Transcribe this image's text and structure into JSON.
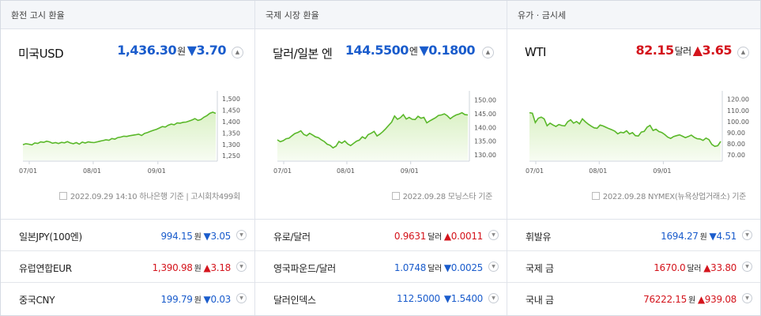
{
  "panels": [
    {
      "header": "환전 고시 환율",
      "title": "미국USD",
      "price": "1,436.30",
      "unit": "원",
      "change": "▼3.70",
      "direction": "down",
      "toggle_icon": "▲",
      "source": "2022.09.29 14:10 하나은행  기준  |  고시회차499회",
      "chart_data": {
        "type": "area",
        "x_ticks": [
          "07/01",
          "08/01",
          "09/01"
        ],
        "y_ticks": [
          "1,500",
          "1,450",
          "1,400",
          "1,350",
          "1,300",
          "1,250"
        ],
        "ylim": [
          1230,
          1500
        ],
        "values": [
          1299,
          1303,
          1301,
          1298,
          1306,
          1304,
          1311,
          1309,
          1314,
          1311,
          1305,
          1308,
          1304,
          1309,
          1307,
          1312,
          1306,
          1303,
          1308,
          1301,
          1310,
          1306,
          1311,
          1309,
          1308,
          1311,
          1314,
          1317,
          1320,
          1318,
          1326,
          1323,
          1330,
          1332,
          1336,
          1335,
          1338,
          1340,
          1342,
          1345,
          1339,
          1348,
          1352,
          1357,
          1362,
          1366,
          1372,
          1378,
          1376,
          1384,
          1389,
          1386,
          1394,
          1393,
          1397,
          1398,
          1402,
          1407,
          1413,
          1405,
          1409,
          1419,
          1426,
          1436,
          1441,
          1436
        ]
      },
      "rows": [
        {
          "name": "일본JPY(100엔)",
          "value": "994.15",
          "unit": "원",
          "change": "▼3.05",
          "direction": "down"
        },
        {
          "name": "유럽연합EUR",
          "value": "1,390.98",
          "unit": "원",
          "change": "▲3.18",
          "direction": "up"
        },
        {
          "name": "중국CNY",
          "value": "199.79",
          "unit": "원",
          "change": "▼0.03",
          "direction": "down"
        }
      ]
    },
    {
      "header": "국제 시장 환율",
      "title": "달러/일본 엔",
      "price": "144.5500",
      "unit": "엔",
      "change": "▼0.1800",
      "direction": "down",
      "toggle_icon": "▲",
      "source": "2022.09.28 모닝스타 기준",
      "chart_data": {
        "type": "area",
        "x_ticks": [
          "07/01",
          "08/01",
          "09/01"
        ],
        "y_ticks": [
          "150.00",
          "145.00",
          "140.00",
          "135.00",
          "130.00"
        ],
        "ylim": [
          128,
          150.5
        ],
        "values": [
          135.5,
          134.8,
          135.2,
          135.9,
          136.1,
          137.0,
          137.8,
          138.2,
          138.8,
          137.5,
          137.0,
          137.9,
          137.3,
          136.6,
          136.3,
          135.5,
          134.9,
          133.9,
          133.5,
          132.6,
          133.2,
          134.9,
          134.3,
          135.1,
          134.0,
          133.4,
          134.2,
          135.0,
          135.4,
          136.6,
          136.0,
          137.4,
          137.9,
          138.6,
          136.9,
          137.6,
          138.5,
          139.6,
          140.8,
          142.0,
          144.2,
          143.0,
          143.6,
          144.7,
          143.1,
          143.7,
          143.0,
          142.9,
          144.1,
          143.4,
          143.7,
          141.7,
          142.4,
          143.0,
          143.6,
          144.4,
          144.6,
          145.0,
          144.3,
          143.2,
          144.0,
          144.6,
          144.9,
          145.4,
          144.7,
          144.6
        ]
      },
      "rows": [
        {
          "name": "유로/달러",
          "value": "0.9631",
          "unit": "달러",
          "change": "▲0.0011",
          "direction": "up"
        },
        {
          "name": "영국파운드/달러",
          "value": "1.0748",
          "unit": "달러",
          "change": "▼0.0025",
          "direction": "down"
        },
        {
          "name": "달러인덱스",
          "value": "112.5000",
          "unit": "",
          "change": "▼1.5400",
          "direction": "down"
        }
      ]
    },
    {
      "header": "유가 · 금시세",
      "title": "WTI",
      "price": "82.15",
      "unit": "달러",
      "change": "▲3.65",
      "direction": "up",
      "toggle_icon": "▲",
      "source": "2022.09.28 NYMEX(뉴욕상업거래소) 기준",
      "chart_data": {
        "type": "area",
        "x_ticks": [
          "07/01",
          "08/01",
          "09/01"
        ],
        "y_ticks": [
          "120.00",
          "110.00",
          "100.00",
          "90.00",
          "80.00",
          "70.00"
        ],
        "ylim": [
          65,
          120.5
        ],
        "values": [
          108,
          107.5,
          99,
          103,
          104,
          102.4,
          96.2,
          98.5,
          96.9,
          95.5,
          97.3,
          96.4,
          96.0,
          99.8,
          101.5,
          98.5,
          100.0,
          97.9,
          102.4,
          99.8,
          97.6,
          95.8,
          94.3,
          93.9,
          96.8,
          96.0,
          94.8,
          93.6,
          92.6,
          91.3,
          88.9,
          90.3,
          89.8,
          91.6,
          88.8,
          90.0,
          87.3,
          86.9,
          90.5,
          91.1,
          94.9,
          96.5,
          92.0,
          93.0,
          91.0,
          90.1,
          88.2,
          85.9,
          84.8,
          86.5,
          87.3,
          88.0,
          86.8,
          85.5,
          86.5,
          87.8,
          85.8,
          84.5,
          84.3,
          83.0,
          85.1,
          83.7,
          79.4,
          77.6,
          78.2,
          82.1
        ]
      },
      "rows": [
        {
          "name": "휘발유",
          "value": "1694.27",
          "unit": "원",
          "change": "▼4.51",
          "direction": "down"
        },
        {
          "name": "국제 금",
          "value": "1670.0",
          "unit": "달러",
          "change": "▲33.80",
          "direction": "up"
        },
        {
          "name": "국내 금",
          "value": "76222.15",
          "unit": "원",
          "change": "▲939.08",
          "direction": "up"
        }
      ]
    }
  ],
  "row_toggle_icon": "▼",
  "colors": {
    "up": "#d4141c",
    "down": "#1a5ccc",
    "line": "#5ab82a",
    "fill_top": "#dbf1c6",
    "fill_bottom": "#f7fcf2",
    "grid": "#e9ecf0"
  }
}
